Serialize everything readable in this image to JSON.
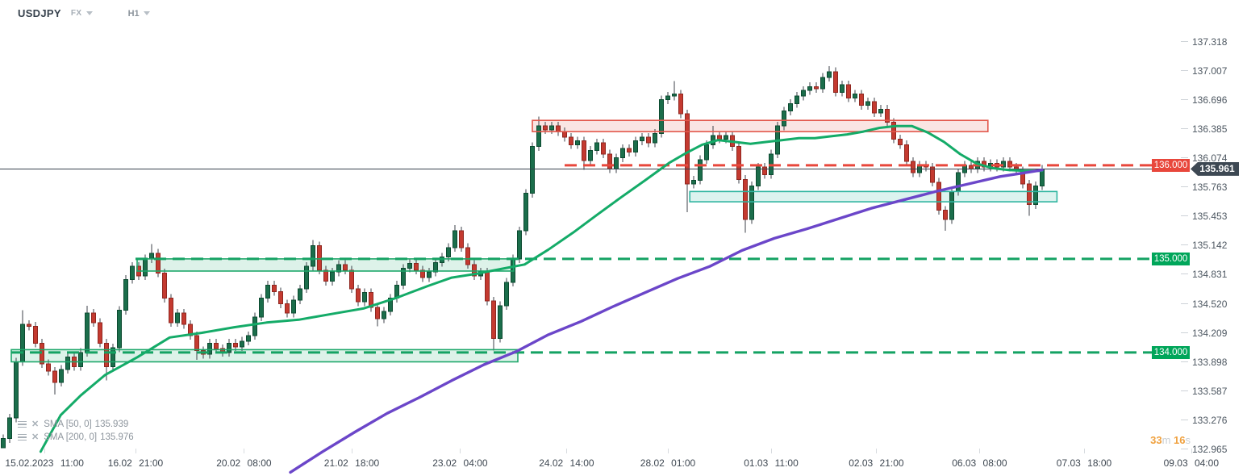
{
  "header": {
    "symbol": "USDJPY",
    "market": "FX",
    "timeframe": "H1"
  },
  "timer": {
    "minutes": "33",
    "minutes_unit": "m",
    "seconds": "16",
    "seconds_unit": "s"
  },
  "chart_data": {
    "type": "candlestick",
    "symbol": "USDJPY",
    "timeframe": "H1",
    "current_price": 135.961,
    "current_price_label": "135.961",
    "grid": "off",
    "y_ticks": [
      "137.318",
      "137.007",
      "136.696",
      "136.385",
      "136.074",
      "135.763",
      "135.453",
      "135.142",
      "134.831",
      "134.520",
      "134.209",
      "133.898",
      "133.587",
      "133.276",
      "132.965"
    ],
    "ylim": [
      132.965,
      137.766
    ],
    "x_ticks": [
      {
        "label": "15.02.2023 11:00",
        "i": 6.4
      },
      {
        "label": "16.02 21:00",
        "i": 20.5
      },
      {
        "label": "20.02 08:00",
        "i": 37.3
      },
      {
        "label": "21.02 18:00",
        "i": 54.0
      },
      {
        "label": "23.02 04:00",
        "i": 70.8
      },
      {
        "label": "24.02 14:00",
        "i": 87.3
      },
      {
        "label": "28.02 01:00",
        "i": 103.0
      },
      {
        "label": "01.03 11:00",
        "i": 119.0
      },
      {
        "label": "02.03 21:00",
        "i": 135.3
      },
      {
        "label": "06.03 08:00",
        "i": 151.3
      },
      {
        "label": "07.03 18:00",
        "i": 167.5
      },
      {
        "label": "09.03 04:00",
        "i": 184.1
      }
    ],
    "levels": [
      {
        "price": 136.0,
        "label": "136.000",
        "color": "#e8473c",
        "badge_bg": "#e8473c",
        "from_i": 87,
        "style": "dashed"
      },
      {
        "price": 135.0,
        "label": "135.000",
        "color": "#14a263",
        "badge_bg": "#00a65a",
        "from_i": 20.5,
        "style": "dashed"
      },
      {
        "price": 134.0,
        "label": "134.000",
        "color": "#14a263",
        "badge_bg": "#00a65a",
        "from_i": 1.25,
        "style": "dashed"
      }
    ],
    "zones": [
      {
        "name": "supply-zone",
        "i0": 82,
        "i1": 152.6,
        "top": 136.48,
        "bottom": 136.36,
        "stroke": "#e2574b",
        "fill": "rgba(230,110,100,0.18)"
      },
      {
        "name": "demand-zone-right",
        "i0": 106.4,
        "i1": 163.3,
        "top": 135.72,
        "bottom": 135.61,
        "stroke": "#2fb5a0",
        "fill": "rgba(47,181,160,0.17)"
      },
      {
        "name": "demand-zone-mid",
        "i0": 20.75,
        "i1": 79.1,
        "top": 135.0,
        "bottom": 134.87,
        "stroke": "#1ea76a",
        "fill": "rgba(30,167,106,0.15)"
      },
      {
        "name": "demand-zone-low",
        "i0": 1.25,
        "i1": 79.75,
        "top": 134.03,
        "bottom": 133.9,
        "stroke": "#1ea76a",
        "fill": "rgba(30,167,106,0.15)"
      }
    ],
    "candles": {
      "bull_color": "#1b6e4b",
      "bear_color": "#c43a30",
      "bull_border": "#0c4a30",
      "bear_border": "#8f2720",
      "wick_color": "#3c4249",
      "first_open": 132.98,
      "default_wick": 0.045,
      "closes": [
        133.08,
        133.3,
        133.9,
        134.3,
        134.28,
        134.1,
        133.88,
        133.8,
        133.68,
        133.82,
        133.95,
        133.85,
        134.0,
        134.42,
        134.32,
        134.1,
        133.85,
        134.05,
        134.45,
        134.78,
        134.92,
        134.82,
        135.0,
        135.06,
        134.85,
        134.58,
        134.32,
        134.42,
        134.3,
        134.18,
        134.02,
        133.98,
        134.1,
        134.04,
        134.0,
        134.1,
        134.06,
        134.12,
        134.18,
        134.38,
        134.58,
        134.72,
        134.65,
        134.52,
        134.42,
        134.56,
        134.68,
        134.92,
        135.14,
        134.88,
        134.76,
        134.86,
        134.94,
        134.88,
        134.68,
        134.54,
        134.64,
        134.48,
        134.36,
        134.44,
        134.58,
        134.72,
        134.9,
        134.95,
        134.88,
        134.8,
        134.86,
        134.96,
        135.02,
        135.12,
        135.3,
        135.12,
        134.94,
        134.82,
        134.86,
        134.55,
        134.15,
        134.5,
        134.75,
        135.0,
        135.3,
        135.7,
        136.2,
        136.42,
        136.38,
        136.42,
        136.36,
        136.3,
        136.22,
        136.26,
        136.05,
        136.16,
        136.24,
        136.12,
        135.96,
        136.08,
        136.18,
        136.14,
        136.26,
        136.3,
        136.24,
        136.34,
        136.7,
        136.74,
        136.76,
        136.55,
        135.8,
        135.84,
        136.06,
        136.22,
        136.32,
        136.28,
        136.32,
        136.2,
        135.85,
        135.42,
        135.78,
        135.98,
        135.9,
        136.12,
        136.42,
        136.58,
        136.66,
        136.74,
        136.8,
        136.84,
        136.82,
        136.94,
        137.0,
        136.78,
        136.86,
        136.72,
        136.76,
        136.64,
        136.68,
        136.56,
        136.6,
        136.46,
        136.28,
        136.22,
        136.04,
        135.92,
        136.0,
        135.98,
        135.82,
        135.52,
        135.42,
        135.72,
        135.92,
        136.0,
        135.96,
        136.04,
        135.98,
        136.02,
        135.98,
        136.04,
        135.98,
        135.94,
        135.8,
        135.58,
        135.78,
        135.96
      ],
      "extremes": [
        [
          0,
          null,
          132.98
        ],
        [
          3,
          134.45,
          null
        ],
        [
          8,
          null,
          133.55
        ],
        [
          13,
          134.5,
          null
        ],
        [
          16,
          null,
          133.7
        ],
        [
          23,
          135.16,
          null
        ],
        [
          30,
          null,
          133.92
        ],
        [
          48,
          135.2,
          null
        ],
        [
          58,
          null,
          134.28
        ],
        [
          70,
          135.36,
          null
        ],
        [
          76,
          null,
          134.02
        ],
        [
          83,
          136.52,
          null
        ],
        [
          90,
          null,
          135.95
        ],
        [
          104,
          136.9,
          null
        ],
        [
          106,
          null,
          135.5
        ],
        [
          110,
          136.42,
          null
        ],
        [
          115,
          null,
          135.28
        ],
        [
          128,
          137.06,
          null
        ],
        [
          146,
          null,
          135.3
        ],
        [
          159,
          null,
          135.46
        ]
      ]
    },
    "sma50": {
      "label_name": "SMA [50, 0]",
      "value": "135.939",
      "color": "#14ab68",
      "points": [
        [
          5.8,
          132.94
        ],
        [
          8.9,
          133.33
        ],
        [
          12,
          133.54
        ],
        [
          15.8,
          133.76
        ],
        [
          20.8,
          133.95
        ],
        [
          25.8,
          134.16
        ],
        [
          30.8,
          134.21
        ],
        [
          35.8,
          134.27
        ],
        [
          40.8,
          134.32
        ],
        [
          45.8,
          134.35
        ],
        [
          50.8,
          134.41
        ],
        [
          55.8,
          134.47
        ],
        [
          60.8,
          134.58
        ],
        [
          65.8,
          134.71
        ],
        [
          69.5,
          134.8
        ],
        [
          73.3,
          134.84
        ],
        [
          77,
          134.89
        ],
        [
          80.8,
          134.94
        ],
        [
          84.5,
          135.1
        ],
        [
          88.3,
          135.28
        ],
        [
          92,
          135.47
        ],
        [
          95.8,
          135.66
        ],
        [
          99.5,
          135.84
        ],
        [
          103.3,
          136.03
        ],
        [
          105.8,
          136.13
        ],
        [
          108.3,
          136.22
        ],
        [
          110.8,
          136.27
        ],
        [
          113.3,
          136.25
        ],
        [
          115.8,
          136.23
        ],
        [
          118.3,
          136.25
        ],
        [
          120.8,
          136.27
        ],
        [
          123.3,
          136.29
        ],
        [
          125.8,
          136.29
        ],
        [
          128.3,
          136.31
        ],
        [
          130.8,
          136.33
        ],
        [
          133.3,
          136.36
        ],
        [
          135.8,
          136.4
        ],
        [
          138.3,
          136.42
        ],
        [
          140.8,
          136.42
        ],
        [
          143.3,
          136.35
        ],
        [
          145.8,
          136.25
        ],
        [
          148.3,
          136.12
        ],
        [
          150.8,
          136.02
        ],
        [
          153.3,
          135.97
        ],
        [
          155.8,
          135.95
        ],
        [
          158.3,
          135.94
        ],
        [
          161,
          135.94
        ]
      ]
    },
    "sma200": {
      "label_name": "SMA [200, 0]",
      "value": "135.976",
      "color": "#6b46c9",
      "points": [
        [
          44.5,
          132.72
        ],
        [
          49.5,
          132.94
        ],
        [
          54.5,
          133.15
        ],
        [
          59.5,
          133.35
        ],
        [
          64.5,
          133.52
        ],
        [
          69.5,
          133.7
        ],
        [
          74.5,
          133.87
        ],
        [
          79.5,
          134.01
        ],
        [
          84.5,
          134.19
        ],
        [
          89.5,
          134.33
        ],
        [
          94.5,
          134.49
        ],
        [
          99.5,
          134.64
        ],
        [
          104.5,
          134.79
        ],
        [
          109.5,
          134.92
        ],
        [
          114.5,
          135.09
        ],
        [
          119.5,
          135.22
        ],
        [
          124.5,
          135.32
        ],
        [
          129.5,
          135.43
        ],
        [
          134.5,
          135.54
        ],
        [
          139.5,
          135.63
        ],
        [
          144.5,
          135.72
        ],
        [
          149.5,
          135.8
        ],
        [
          154.5,
          135.88
        ],
        [
          158.3,
          135.92
        ],
        [
          161,
          135.95
        ]
      ]
    }
  }
}
